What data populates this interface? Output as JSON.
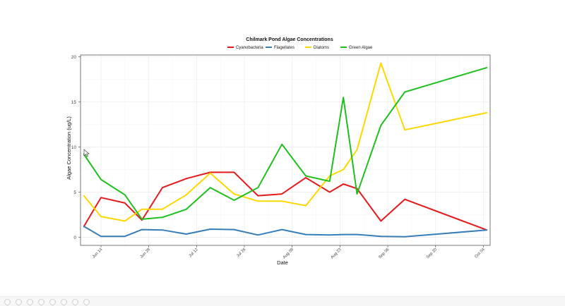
{
  "chart_data": {
    "type": "line",
    "title": "Chilmark Pond Algae Concentrations",
    "xlabel": "Date",
    "ylabel": "Algae Concentration (ug/L)",
    "ylim": [
      -0.9,
      20.2
    ],
    "yticks": [
      0,
      5,
      10,
      15,
      20
    ],
    "xticks": [
      {
        "label": "Jun 14",
        "date": "2021-06-14"
      },
      {
        "label": "Jun 28",
        "date": "2021-06-28"
      },
      {
        "label": "Jul 12",
        "date": "2021-07-12"
      },
      {
        "label": "Jul 26",
        "date": "2021-07-26"
      },
      {
        "label": "Aug 09",
        "date": "2021-08-09"
      },
      {
        "label": "Aug 23",
        "date": "2021-08-23"
      },
      {
        "label": "Sep 06",
        "date": "2021-09-06"
      },
      {
        "label": "Sep 20",
        "date": "2021-09-20"
      },
      {
        "label": "Oct 04",
        "date": "2021-10-04"
      }
    ],
    "xlim": [
      "2021-06-08",
      "2021-10-06"
    ],
    "grid": true,
    "legend_position": "top",
    "x": [
      "2021-06-09",
      "2021-06-14",
      "2021-06-21",
      "2021-06-26",
      "2021-07-02",
      "2021-07-09",
      "2021-07-16",
      "2021-07-23",
      "2021-07-30",
      "2021-08-06",
      "2021-08-13",
      "2021-08-20",
      "2021-08-24",
      "2021-08-28",
      "2021-09-04",
      "2021-09-11",
      "2021-09-18",
      "2021-09-25",
      "2021-10-05"
    ],
    "series": [
      {
        "name": "Cyanobacteria",
        "color": "#e41a1c",
        "values": [
          1.2,
          4.4,
          3.8,
          1.9,
          5.5,
          6.5,
          7.2,
          7.2,
          4.6,
          4.8,
          6.6,
          5.0,
          5.9,
          5.4,
          1.8,
          4.2,
          null,
          null,
          0.8
        ]
      },
      {
        "name": "Flagellates",
        "color": "#377eb8",
        "values": [
          1.2,
          0.1,
          0.1,
          0.85,
          0.8,
          0.35,
          0.9,
          0.85,
          0.25,
          0.85,
          0.3,
          0.25,
          0.3,
          0.3,
          0.1,
          0.05,
          null,
          null,
          0.8
        ]
      },
      {
        "name": "Diatoms",
        "color": "#ffd700",
        "values": [
          4.6,
          2.3,
          1.8,
          3.1,
          3.1,
          4.7,
          7.1,
          4.8,
          4.0,
          4.0,
          3.5,
          6.8,
          7.5,
          9.7,
          19.3,
          11.9,
          null,
          null,
          13.8
        ]
      },
      {
        "name": "Green Algae",
        "color": "#1fbf1f",
        "values": [
          9.2,
          6.4,
          4.7,
          2.0,
          2.2,
          3.1,
          5.5,
          4.1,
          5.5,
          10.3,
          6.8,
          6.2,
          15.5,
          4.8,
          12.4,
          16.1,
          null,
          null,
          18.8
        ]
      }
    ]
  }
}
